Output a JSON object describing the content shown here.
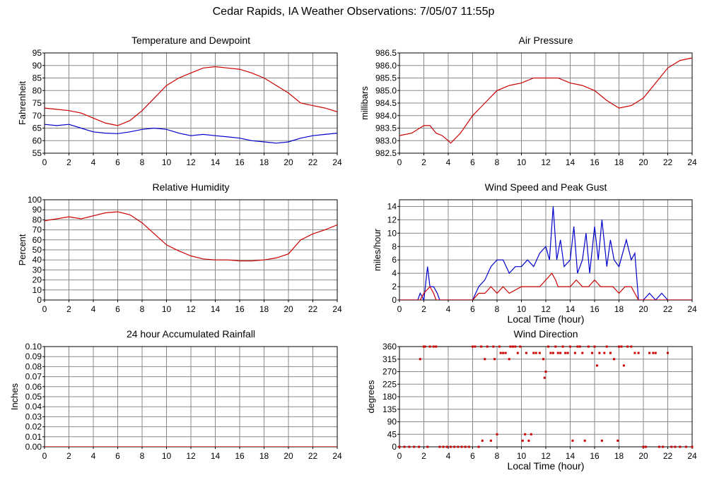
{
  "title": "Cedar Rapids, IA Weather Observations: 7/05/07 11:55p",
  "colors": {
    "red": "#cc0000",
    "blue": "#0000cc",
    "grid": "#888888"
  },
  "chart_data": [
    {
      "id": "temp",
      "type": "line",
      "title": "Temperature and Dewpoint",
      "ylabel": "Fahrenheit",
      "xlabel": "",
      "xlim": [
        0,
        24
      ],
      "ylim": [
        55,
        95
      ],
      "xticks": [
        0,
        2,
        4,
        6,
        8,
        10,
        12,
        14,
        16,
        18,
        20,
        22,
        24
      ],
      "yticks": [
        55,
        60,
        65,
        70,
        75,
        80,
        85,
        90,
        95
      ],
      "ytick_decimals": 0,
      "grid": true,
      "series": [
        {
          "color": "#cc0000",
          "x": [
            0,
            1,
            2,
            3,
            4,
            5,
            6,
            7,
            8,
            9,
            10,
            11,
            12,
            13,
            14,
            15,
            16,
            17,
            18,
            19,
            20,
            21,
            22,
            23,
            24
          ],
          "y": [
            73,
            72.5,
            72,
            71,
            69,
            67,
            66,
            68,
            72,
            77,
            82,
            85,
            87,
            89,
            89.5,
            89,
            88.5,
            87,
            85,
            82,
            79,
            75,
            74,
            73,
            71.5
          ]
        },
        {
          "color": "#0000cc",
          "x": [
            0,
            1,
            2,
            3,
            4,
            5,
            6,
            7,
            8,
            9,
            10,
            11,
            12,
            13,
            14,
            15,
            16,
            17,
            18,
            19,
            20,
            21,
            22,
            23,
            24
          ],
          "y": [
            66.5,
            66,
            66.5,
            65,
            63.5,
            63,
            62.8,
            63.5,
            64.5,
            65,
            64.5,
            63,
            62,
            62.5,
            62,
            61.5,
            61,
            60,
            59.5,
            59,
            59.5,
            61,
            62,
            62.5,
            63
          ]
        }
      ]
    },
    {
      "id": "pressure",
      "type": "line",
      "title": "Air Pressure",
      "ylabel": "millibars",
      "xlabel": "",
      "xlim": [
        0,
        24
      ],
      "ylim": [
        982.5,
        986.5
      ],
      "xticks": [
        0,
        2,
        4,
        6,
        8,
        10,
        12,
        14,
        16,
        18,
        20,
        22,
        24
      ],
      "yticks": [
        982.5,
        983.0,
        983.5,
        984.0,
        984.5,
        985.0,
        985.5,
        986.0,
        986.5
      ],
      "ytick_decimals": 1,
      "grid": true,
      "series": [
        {
          "color": "#cc0000",
          "x": [
            0,
            1,
            2,
            2.5,
            3,
            3.5,
            4,
            4.2,
            5,
            6,
            7,
            8,
            9,
            10,
            11,
            12,
            13,
            14,
            15,
            16,
            17,
            18,
            19,
            20,
            21,
            22,
            23,
            24
          ],
          "y": [
            983.2,
            983.3,
            983.6,
            983.6,
            983.3,
            983.2,
            983.0,
            982.9,
            983.3,
            984.0,
            984.5,
            985.0,
            985.2,
            985.3,
            985.5,
            985.5,
            985.5,
            985.3,
            985.2,
            985.0,
            984.6,
            984.3,
            984.4,
            984.7,
            985.3,
            985.9,
            986.2,
            986.3
          ]
        }
      ]
    },
    {
      "id": "humidity",
      "type": "line",
      "title": "Relative Humidity",
      "ylabel": "Percent",
      "xlabel": "",
      "xlim": [
        0,
        24
      ],
      "ylim": [
        0,
        100
      ],
      "xticks": [
        0,
        2,
        4,
        6,
        8,
        10,
        12,
        14,
        16,
        18,
        20,
        22,
        24
      ],
      "yticks": [
        0,
        10,
        20,
        30,
        40,
        50,
        60,
        70,
        80,
        90,
        100
      ],
      "ytick_decimals": 0,
      "grid": true,
      "series": [
        {
          "color": "#cc0000",
          "x": [
            0,
            1,
            2,
            3,
            4,
            5,
            6,
            7,
            8,
            9,
            10,
            11,
            12,
            13,
            14,
            15,
            16,
            17,
            18,
            19,
            20,
            21,
            22,
            23,
            24
          ],
          "y": [
            79,
            81,
            83,
            81,
            84,
            87,
            88,
            85,
            77,
            66,
            55,
            49,
            44,
            41,
            40,
            40,
            39,
            39,
            40,
            42,
            46,
            60,
            66,
            70,
            75
          ]
        }
      ]
    },
    {
      "id": "wind",
      "type": "line",
      "title": "Wind Speed and Peak Gust",
      "ylabel": "miles/hour",
      "xlabel": "Local Time (hour)",
      "xlim": [
        0,
        24
      ],
      "ylim": [
        0,
        15
      ],
      "xticks": [
        0,
        2,
        4,
        6,
        8,
        10,
        12,
        14,
        16,
        18,
        20,
        22,
        24
      ],
      "yticks": [
        0,
        2,
        4,
        6,
        8,
        10,
        12,
        14
      ],
      "ytick_decimals": 0,
      "grid": true,
      "series": [
        {
          "color": "#0000cc",
          "x": [
            0,
            1.5,
            1.7,
            2,
            2.3,
            2.5,
            2.8,
            3.1,
            3.3,
            6,
            6.5,
            7,
            7.5,
            8,
            8.5,
            9,
            9.5,
            10,
            10.5,
            11,
            11.5,
            12,
            12.3,
            12.6,
            12.9,
            13.2,
            13.5,
            14,
            14.3,
            14.6,
            15,
            15.3,
            15.6,
            16,
            16.3,
            16.6,
            17,
            17.3,
            17.6,
            18,
            18.3,
            18.6,
            19,
            19.3,
            19.6,
            20,
            20.5,
            21,
            21.5,
            22,
            24
          ],
          "y": [
            0,
            0,
            1,
            0,
            5,
            2,
            2,
            1,
            0,
            0,
            2,
            3,
            5,
            6,
            6,
            4,
            5,
            5,
            6,
            5,
            7,
            8,
            6,
            14,
            6,
            9,
            5,
            6,
            11,
            4,
            6,
            10,
            4,
            11,
            6,
            12,
            5,
            9,
            6,
            5,
            7,
            9,
            6,
            7,
            0,
            0,
            1,
            0,
            1,
            0,
            0
          ]
        },
        {
          "color": "#cc0000",
          "x": [
            0,
            1.7,
            2,
            2.5,
            2.8,
            3,
            6,
            6.5,
            7,
            7.5,
            8,
            8.5,
            9,
            10,
            11,
            11.5,
            12,
            12.5,
            12.8,
            13,
            13.5,
            14,
            14.5,
            15,
            15.5,
            16,
            16.5,
            17,
            17.5,
            18,
            18.5,
            19,
            19.3,
            19.6,
            24
          ],
          "y": [
            0,
            0,
            1,
            2,
            1,
            0,
            0,
            1,
            1,
            2,
            1,
            2,
            1,
            2,
            2,
            2,
            3,
            4,
            3,
            2,
            2,
            2,
            3,
            2,
            2,
            3,
            2,
            2,
            2,
            1,
            2,
            2,
            1,
            0,
            0
          ]
        }
      ]
    },
    {
      "id": "rain",
      "type": "line",
      "title": "24 hour Accumulated Rainfall",
      "ylabel": "Inches",
      "xlabel": "",
      "xlim": [
        0,
        24
      ],
      "ylim": [
        0,
        0.1
      ],
      "xticks": [
        0,
        2,
        4,
        6,
        8,
        10,
        12,
        14,
        16,
        18,
        20,
        22,
        24
      ],
      "yticks": [
        0,
        0.01,
        0.02,
        0.03,
        0.04,
        0.05,
        0.06,
        0.07,
        0.08,
        0.09,
        0.1
      ],
      "ytick_decimals": 2,
      "grid": true,
      "series": [
        {
          "color": "#cc0000",
          "x": [
            0,
            24
          ],
          "y": [
            0,
            0
          ]
        }
      ]
    },
    {
      "id": "direction",
      "type": "scatter",
      "title": "Wind Direction",
      "ylabel": "degrees",
      "xlabel": "Local Time (hour)",
      "xlim": [
        0,
        24
      ],
      "ylim": [
        0,
        360
      ],
      "xticks": [
        0,
        2,
        4,
        6,
        8,
        10,
        12,
        14,
        16,
        18,
        20,
        22,
        24
      ],
      "yticks": [
        0,
        45,
        90,
        135,
        180,
        225,
        270,
        315,
        360
      ],
      "ytick_decimals": 0,
      "grid": true,
      "series": [
        {
          "color": "#cc0000",
          "x": [
            0,
            0.4,
            0.8,
            1.2,
            1.6,
            1.7,
            2.0,
            2.1,
            2.3,
            2.5,
            2.8,
            3.0,
            3.3,
            3.6,
            3.9,
            4.2,
            4.5,
            4.8,
            5.1,
            5.4,
            5.7,
            6.0,
            6.2,
            6.5,
            6.7,
            6.8,
            7.0,
            7.2,
            7.5,
            7.7,
            7.8,
            8.0,
            8.2,
            8.3,
            8.5,
            8.7,
            9.0,
            9.1,
            9.3,
            9.5,
            9.7,
            9.9,
            10.1,
            10.3,
            10.4,
            10.6,
            10.8,
            11.0,
            11.2,
            11.5,
            11.8,
            11.9,
            12.0,
            12.2,
            12.4,
            12.6,
            12.8,
            13.0,
            13.2,
            13.4,
            13.6,
            13.8,
            14.0,
            14.2,
            14.4,
            14.6,
            14.8,
            15.0,
            15.2,
            15.5,
            15.8,
            16.0,
            16.2,
            16.4,
            16.6,
            16.8,
            17.0,
            17.3,
            17.6,
            17.9,
            18.0,
            18.2,
            18.4,
            18.7,
            19.0,
            19.3,
            19.6,
            20.0,
            20.2,
            20.5,
            20.8,
            21.0,
            21.3,
            21.6,
            22.0,
            22.3,
            22.6,
            23.0,
            23.5,
            24.0
          ],
          "y": [
            0,
            0,
            0,
            0,
            0,
            315,
            360,
            360,
            0,
            360,
            360,
            360,
            0,
            0,
            0,
            0,
            0,
            0,
            0,
            0,
            0,
            360,
            360,
            0,
            360,
            22,
            315,
            360,
            22,
            360,
            315,
            45,
            360,
            337,
            337,
            337,
            315,
            360,
            360,
            360,
            337,
            360,
            22,
            45,
            337,
            22,
            45,
            337,
            337,
            337,
            315,
            248,
            270,
            360,
            337,
            337,
            360,
            337,
            337,
            360,
            337,
            337,
            360,
            22,
            337,
            360,
            360,
            337,
            22,
            360,
            337,
            360,
            292,
            337,
            22,
            337,
            360,
            337,
            315,
            22,
            360,
            360,
            292,
            360,
            360,
            337,
            337,
            0,
            0,
            337,
            337,
            337,
            0,
            0,
            337,
            0,
            0,
            0,
            0,
            0
          ]
        }
      ]
    }
  ]
}
